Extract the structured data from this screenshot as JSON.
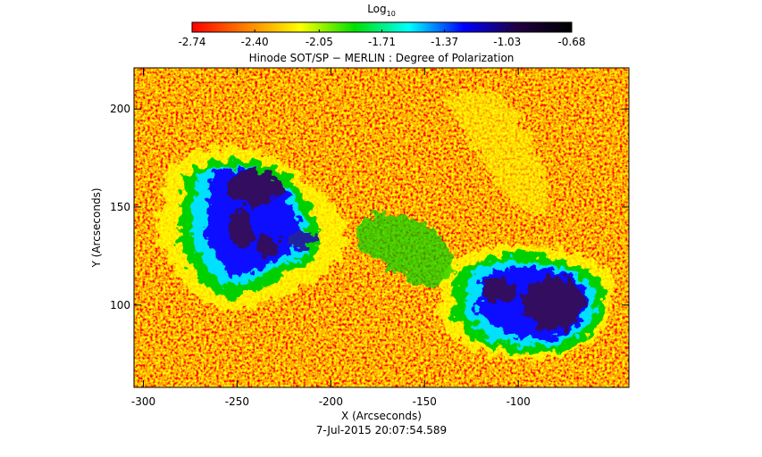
{
  "chart_data": {
    "type": "image",
    "title": "Hinode SOT/SP − MERLIN : Degree of Polarization",
    "subtitle": "7-Jul-2015 20:07:54.589",
    "x_label": "X (Arcseconds)",
    "y_label": "Y (Arcseconds)",
    "xlim": [
      -305,
      -41
    ],
    "xticks": [
      -300,
      -250,
      -200,
      -150,
      -100
    ],
    "ylim": [
      58,
      221
    ],
    "yticks": [
      100,
      150,
      200
    ],
    "colorbar": {
      "label": "Log",
      "label_subscript": "10",
      "range": [
        -2.74,
        -0.68
      ],
      "ticks": [
        -2.74,
        -2.4,
        -2.05,
        -1.71,
        -1.37,
        -1.03,
        -0.68
      ],
      "colors": [
        "#ff0000",
        "#ff8000",
        "#ffff00",
        "#00e000",
        "#00ffff",
        "#0000ff",
        "#200040",
        "#000000"
      ]
    }
  }
}
